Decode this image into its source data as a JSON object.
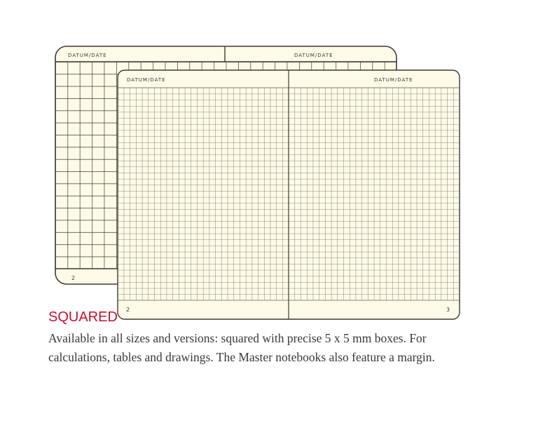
{
  "back_notebook": {
    "header_left": "DATUM/DATE",
    "header_right": "DATUM/DATE",
    "page_left": "2"
  },
  "front_notebook": {
    "header_left": "DATUM/DATE",
    "header_right": "DATUM/DATE",
    "page_left": "2",
    "page_right": "3"
  },
  "title": "SQUARED",
  "description": "Available in all sizes and versions: squared with precise 5 x 5 mm boxes. For calculations, tables and drawings. The Master notebooks also feature a margin.",
  "colors": {
    "paper": "#fdfbe8",
    "ink": "#3f3a35",
    "accent": "#c8102e"
  }
}
